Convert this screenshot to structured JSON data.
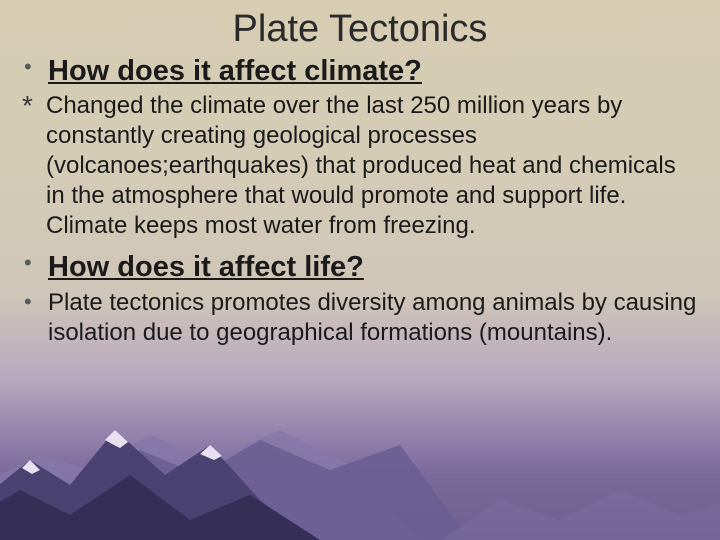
{
  "title": "Plate Tectonics",
  "sections": [
    {
      "marker": "•",
      "markerClass": "bullet-marker",
      "text": "How does it affect climate?",
      "textClass": "heading-text",
      "blockClass": "heading-block"
    },
    {
      "marker": "*",
      "markerClass": "asterisk-marker",
      "text": "Changed the climate over the last 250 million years by constantly creating geological processes (volcanoes;earthquakes) that produced heat and chemicals in the atmosphere that would promote and support life.  Climate keeps most water from freezing.",
      "textClass": "body-text",
      "blockClass": "desc-block"
    },
    {
      "marker": "•",
      "markerClass": "bullet-marker",
      "text": "How does it affect life?",
      "textClass": "heading-text",
      "blockClass": "heading-block"
    },
    {
      "marker": "•",
      "markerClass": "bullet-marker",
      "text": " Plate tectonics promotes diversity among animals by causing isolation due to geographical formations (mountains).",
      "textClass": "body-text",
      "blockClass": "desc-block"
    }
  ],
  "style": {
    "background_gradient_colors": [
      "#d6cdb3",
      "#d4ccb5",
      "#cfc5b8",
      "#b8a8c0",
      "#9584ac",
      "#7a6a9a",
      "#6e5f8f"
    ],
    "title_fontsize": 38,
    "heading_fontsize": 29,
    "body_fontsize": 24,
    "text_color": "#1a1a1a",
    "mountain_dark": "#3a3560",
    "mountain_mid": "#5a5080",
    "mountain_light": "#8578a8",
    "mountain_snow": "#e8e0f0"
  }
}
